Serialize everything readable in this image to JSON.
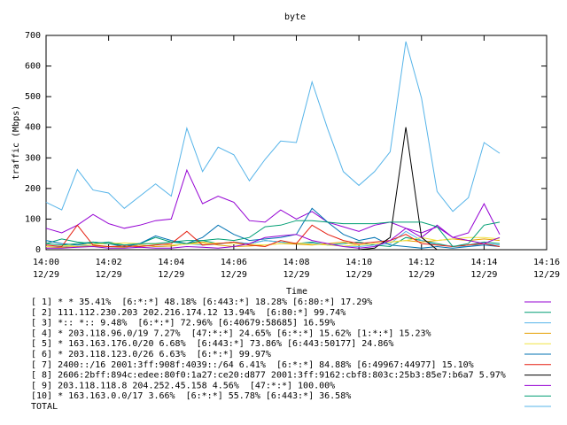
{
  "chart_data": {
    "type": "line",
    "title": "byte",
    "xlabel": "Time",
    "ylabel": "traffic (Mbps)",
    "x": [
      0,
      0.5,
      1,
      1.5,
      2,
      2.5,
      3,
      3.5,
      4,
      4.5,
      5,
      5.5,
      6,
      6.5,
      7,
      7.5,
      8,
      8.5,
      9,
      9.5,
      10,
      10.5,
      11,
      11.5,
      12,
      12.5,
      13,
      13.5,
      14,
      14.5
    ],
    "xlim": [
      0,
      16
    ],
    "xticks": [
      {
        "value": 0,
        "label": "14:00",
        "date": "12/29"
      },
      {
        "value": 2,
        "label": "14:02",
        "date": "12/29"
      },
      {
        "value": 4,
        "label": "14:04",
        "date": "12/29"
      },
      {
        "value": 6,
        "label": "14:06",
        "date": "12/29"
      },
      {
        "value": 8,
        "label": "14:08",
        "date": "12/29"
      },
      {
        "value": 10,
        "label": "14:10",
        "date": "12/29"
      },
      {
        "value": 12,
        "label": "14:12",
        "date": "12/29"
      },
      {
        "value": 14,
        "label": "14:14",
        "date": "12/29"
      },
      {
        "value": 16,
        "label": "14:16",
        "date": "12/29"
      }
    ],
    "ylim": [
      0,
      700
    ],
    "yticks": [
      0,
      100,
      200,
      300,
      400,
      500,
      600,
      700
    ],
    "series": [
      {
        "name": "[ 1] * * 35.41%  [6:*:*] 48.18% [6:443:*] 18.28% [6:80:*] 17.29%",
        "color": "#9400d3",
        "values": [
          70,
          55,
          80,
          115,
          85,
          70,
          80,
          95,
          100,
          260,
          150,
          175,
          155,
          95,
          90,
          130,
          100,
          125,
          90,
          75,
          60,
          80,
          90,
          70,
          55,
          75,
          40,
          55,
          150,
          50
        ]
      },
      {
        "name": "[ 2] 111.112.230.203 202.216.174.12 13.94%  [6:80:*] 99.74%",
        "color": "#009e73",
        "values": [
          20,
          35,
          25,
          20,
          25,
          15,
          20,
          40,
          25,
          30,
          30,
          20,
          25,
          20,
          30,
          25,
          20,
          25,
          15,
          20,
          25,
          15,
          10,
          40,
          30,
          20,
          10,
          15,
          25,
          20
        ]
      },
      {
        "name": "[ 3] *:: *:: 9.48%  [6:*:*] 72.96% [6:40679:58685] 16.59%",
        "color": "#56b4e9",
        "values": [
          10,
          10,
          15,
          12,
          10,
          8,
          15,
          10,
          12,
          20,
          15,
          18,
          25,
          20,
          30,
          25,
          20,
          22,
          15,
          12,
          10,
          15,
          20,
          60,
          30,
          15,
          12,
          10,
          20,
          15
        ]
      },
      {
        "name": "[ 4] * 203.118.96.0/19 7.27%  [47:*:*] 24.65% [6:*:*] 15.62% [1:*:*] 15.23%",
        "color": "#e69f00",
        "values": [
          5,
          8,
          10,
          12,
          10,
          8,
          15,
          10,
          12,
          20,
          25,
          15,
          10,
          12,
          15,
          20,
          18,
          15,
          20,
          25,
          15,
          20,
          25,
          30,
          25,
          30,
          35,
          30,
          35,
          30
        ]
      },
      {
        "name": "[ 5] * 163.163.176.0/20 6.68%  [6:443:*] 73.86% [6:443:50177] 24.86%",
        "color": "#f0e442",
        "values": [
          10,
          12,
          15,
          18,
          20,
          22,
          20,
          18,
          15,
          18,
          20,
          22,
          20,
          18,
          15,
          20,
          22,
          18,
          15,
          12,
          15,
          20,
          25,
          30,
          40,
          30,
          35,
          40,
          40,
          35
        ]
      },
      {
        "name": "[ 6] * 203.118.123.0/26 6.63%  [6:*:*] 99.97%",
        "color": "#0072b2",
        "values": [
          30,
          20,
          15,
          25,
          20,
          10,
          20,
          45,
          30,
          20,
          40,
          80,
          50,
          30,
          35,
          40,
          50,
          135,
          90,
          50,
          30,
          40,
          15,
          10,
          5,
          10,
          5,
          10,
          15,
          10
        ]
      },
      {
        "name": "[ 7] 2400::/16 2001:3ff:908f:4039::/64 6.41%  [6:*:*] 84.88% [6:49967:44977] 15.10%",
        "color": "#e51e10",
        "values": [
          15,
          10,
          80,
          15,
          10,
          12,
          10,
          15,
          20,
          60,
          15,
          20,
          25,
          15,
          10,
          30,
          20,
          80,
          50,
          30,
          20,
          25,
          30,
          50,
          20,
          15,
          10,
          15,
          20,
          10
        ]
      },
      {
        "name": "[ 8] 2606:2bff:894c:edee:80f0:1a27:ce20:d877 2001:3ff:9162:cbf8:803c:25b3:85e7:b6a7 5.97%",
        "color": "#000000",
        "values": [
          0,
          0,
          0,
          0,
          0,
          0,
          0,
          0,
          0,
          0,
          0,
          0,
          0,
          0,
          0,
          0,
          0,
          0,
          0,
          0,
          0,
          5,
          40,
          400,
          40,
          0,
          0,
          0,
          0,
          0
        ]
      },
      {
        "name": "[ 9] 203.118.118.8 204.252.45.158 4.56%  [47:*:*] 100.00%",
        "color": "#9400d3",
        "values": [
          5,
          5,
          8,
          10,
          5,
          5,
          8,
          5,
          5,
          10,
          8,
          5,
          10,
          20,
          40,
          45,
          50,
          30,
          20,
          10,
          5,
          10,
          30,
          70,
          40,
          80,
          40,
          30,
          20,
          40
        ]
      },
      {
        "name": "[10] * 163.163.0.0/17 3.66%  [6:*:*] 55.78% [6:443:*] 36.58%",
        "color": "#009e73",
        "values": [
          20,
          15,
          20,
          25,
          20,
          15,
          20,
          20,
          25,
          20,
          30,
          35,
          30,
          40,
          75,
          80,
          95,
          95,
          90,
          85,
          85,
          85,
          90,
          90,
          90,
          75,
          10,
          20,
          80,
          90
        ]
      },
      {
        "name": "TOTAL",
        "color": "#56b4e9",
        "values": [
          155,
          130,
          262,
          195,
          185,
          135,
          175,
          215,
          175,
          397,
          255,
          335,
          310,
          225,
          295,
          355,
          350,
          548,
          395,
          255,
          210,
          255,
          320,
          680,
          495,
          190,
          125,
          170,
          350,
          315
        ]
      }
    ]
  }
}
